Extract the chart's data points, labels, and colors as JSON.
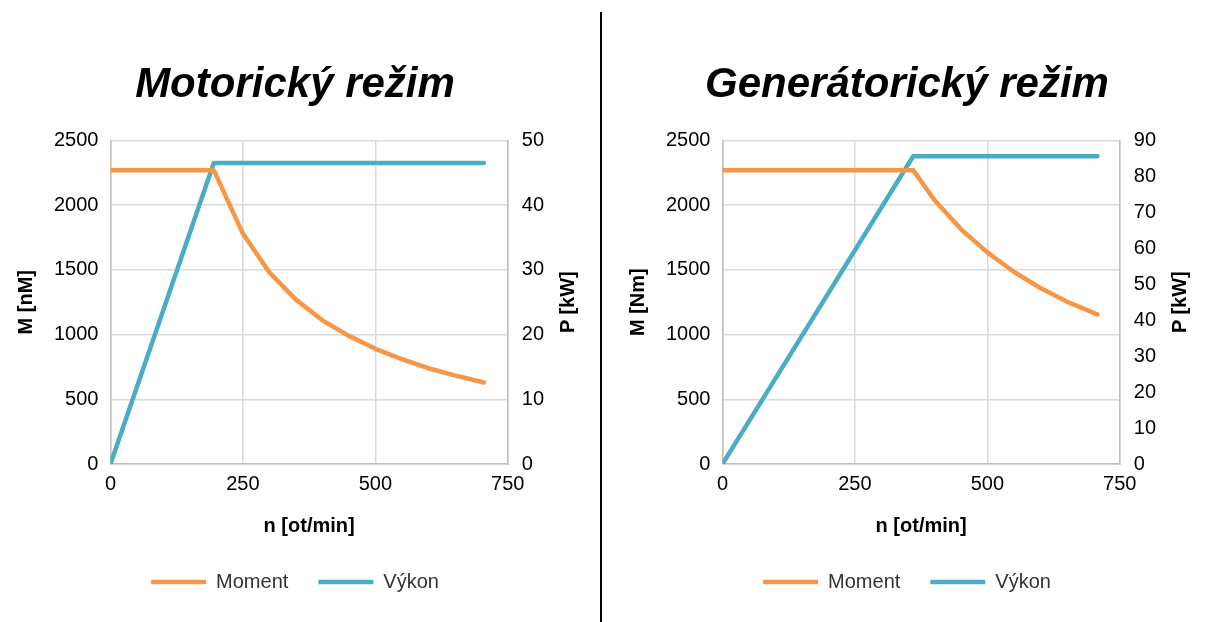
{
  "chart_data": [
    {
      "type": "line",
      "title": "Motorický režim",
      "xlabel": "n [ot/min]",
      "ylabel": "M [nM]",
      "y2label": "P [kW]",
      "xlim": [
        0,
        750
      ],
      "xticks": [
        0,
        250,
        500,
        750
      ],
      "ylim": [
        0,
        2500
      ],
      "yticks": [
        0,
        500,
        1000,
        1500,
        2000,
        2500
      ],
      "y2lim": [
        0,
        50
      ],
      "y2ticks": [
        0,
        10,
        20,
        30,
        40,
        50
      ],
      "grid": true,
      "legend": "bottom",
      "marker": "none",
      "series": [
        {
          "name": "Moment",
          "color": "#f79646",
          "x": [
            0,
            195,
            250,
            300,
            350,
            400,
            450,
            500,
            550,
            600,
            650,
            705
          ],
          "values": [
            2270,
            2270,
            1780,
            1480,
            1270,
            1110,
            990,
            890,
            810,
            740,
            685,
            630
          ]
        },
        {
          "name": "Výkon",
          "color": "#4bacc6",
          "axis": "y2",
          "x": [
            0,
            195,
            705
          ],
          "values": [
            0,
            46.5,
            46.5
          ]
        }
      ]
    },
    {
      "type": "line",
      "title": "Generátorický režim",
      "xlabel": "n [ot/min]",
      "ylabel": "M [Nm]",
      "y2label": "P [kW]",
      "xlim": [
        0,
        750
      ],
      "xticks": [
        0,
        250,
        500,
        750
      ],
      "ylim": [
        0,
        2500
      ],
      "yticks": [
        0,
        500,
        1000,
        1500,
        2000,
        2500
      ],
      "y2lim": [
        0,
        90
      ],
      "y2ticks": [
        0,
        10,
        20,
        30,
        40,
        50,
        60,
        70,
        80,
        90
      ],
      "grid": true,
      "legend": "bottom",
      "marker": "none",
      "series": [
        {
          "name": "Moment",
          "color": "#f79646",
          "x": [
            0,
            360,
            400,
            450,
            500,
            550,
            600,
            650,
            708
          ],
          "values": [
            2270,
            2270,
            2040,
            1815,
            1635,
            1485,
            1360,
            1255,
            1155
          ]
        },
        {
          "name": "Výkon",
          "color": "#4bacc6",
          "axis": "y2",
          "x": [
            0,
            360,
            708
          ],
          "values": [
            0,
            85.6,
            85.6
          ]
        }
      ]
    }
  ]
}
